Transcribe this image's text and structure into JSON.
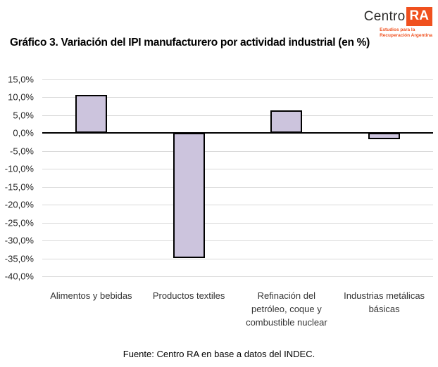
{
  "title": "Gráfico 3. Variación del IPI manufacturero por actividad industrial (en %)",
  "footer": "Fuente: Centro RA en base a datos del INDEC.",
  "logo": {
    "text_centro": "Centro",
    "text_ra": "RA",
    "tagline_line1": "Estudios para la",
    "tagline_line2": "Recuperación Argentina",
    "orange": "#F0501E",
    "dark_text": "#2B2A29"
  },
  "chart_data": {
    "type": "bar",
    "title": "Gráfico 3. Variación del IPI manufacturero por actividad industrial (en %)",
    "xlabel": "",
    "ylabel": "",
    "unit": "%",
    "categories": [
      "Alimentos y bebidas",
      "Productos textiles",
      "Refinación del petróleo, coque y combustible nuclear",
      "Industrias metálicas básicas"
    ],
    "categories_display": [
      "Alimentos y bebidas",
      "Productos textiles",
      "Refinación del\npetróleo, coque y\ncombustible nuclear",
      "Industrias metálicas\nbásicas"
    ],
    "values": [
      10.7,
      -34.9,
      6.3,
      -1.7
    ],
    "ylim": [
      -40,
      15
    ],
    "grid": true,
    "legend": false,
    "yticks": [
      {
        "value": 15,
        "label": "15,0%"
      },
      {
        "value": 10,
        "label": "10,0%"
      },
      {
        "value": 5,
        "label": "5,0%"
      },
      {
        "value": 0,
        "label": "0,0%"
      },
      {
        "value": -5,
        "label": "-5,0%"
      },
      {
        "value": -10,
        "label": "-10,0%"
      },
      {
        "value": -15,
        "label": "-15,0%"
      },
      {
        "value": -20,
        "label": "-20,0%"
      },
      {
        "value": -25,
        "label": "-25,0%"
      },
      {
        "value": -30,
        "label": "-30,0%"
      },
      {
        "value": -35,
        "label": "-35,0%"
      },
      {
        "value": -40,
        "label": "-40,0%"
      }
    ],
    "colors": {
      "bar_fill": "#CCC4DD",
      "bar_border": "#000000",
      "gridline": "#D9D9D9",
      "zero_axis": "#000000"
    }
  }
}
